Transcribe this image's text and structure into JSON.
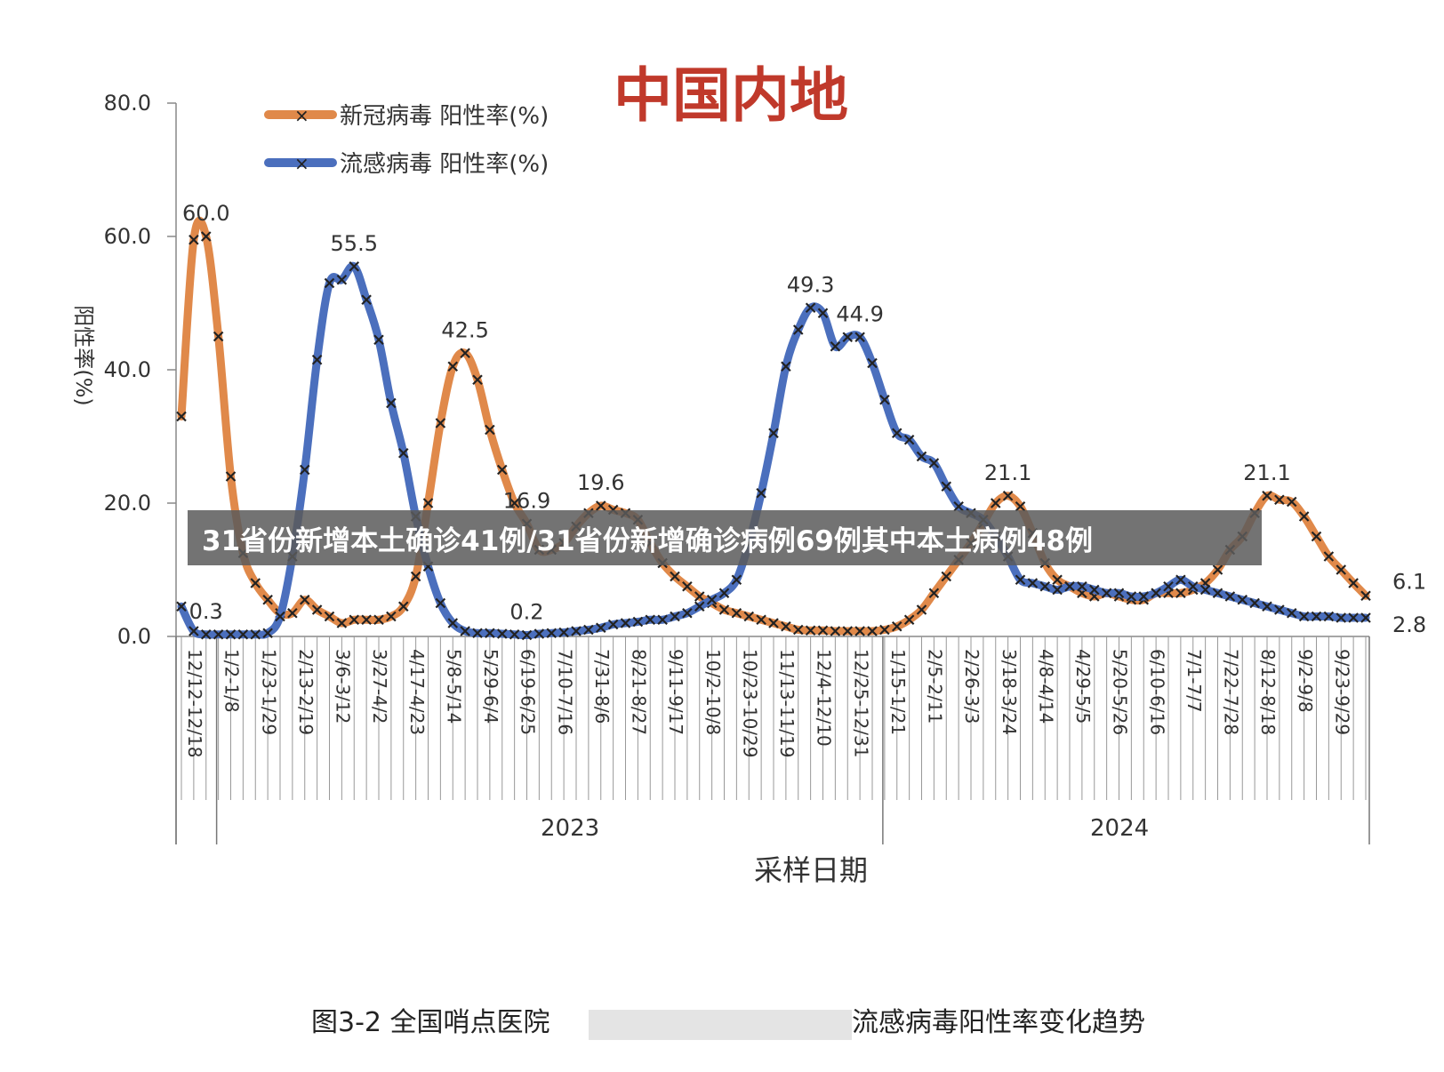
{
  "headline": "31省份新增本土确诊41例/31省份新增确诊病例69例其中本土病例48例",
  "big_title": "中国内地",
  "caption": "图3-2 全国哨点医院",
  "caption_tail": "流感病毒阳性率变化趋势",
  "colors": {
    "covid": "#e0894a",
    "flu": "#4b6fbd",
    "marker": "#222222",
    "title": "#c0392b"
  },
  "chart_data": {
    "type": "line",
    "title": "中国内地",
    "xlabel": "采样日期",
    "ylabel": "阳性率(%)",
    "ylim": [
      0,
      80
    ],
    "yticks": [
      "0.0",
      "20.0",
      "40.0",
      "60.0",
      "80.0"
    ],
    "legend_position": "top-left",
    "year_labels": [
      "2023",
      "2024"
    ],
    "x_tick_labels": [
      "12/12-12/18",
      "1/2-1/8",
      "1/23-1/29",
      "2/13-2/19",
      "3/6-3/12",
      "3/27-4/2",
      "4/17-4/23",
      "5/8-5/14",
      "5/29-6/4",
      "6/19-6/25",
      "7/10-7/16",
      "7/31-8/6",
      "8/21-8/27",
      "9/11-9/17",
      "10/2-10/8",
      "10/23-10/29",
      "11/13-11/19",
      "12/4-12/10",
      "12/25-12/31",
      "1/15-1/21",
      "2/5-2/11",
      "2/26-3/3",
      "3/18-3/24",
      "4/8-4/14",
      "4/29-5/5",
      "5/20-5/26",
      "6/10-6/16",
      "7/1-7/7",
      "7/22-7/28",
      "8/12-8/18",
      "9/2-9/8",
      "9/23-9/29"
    ],
    "series": [
      {
        "name": "新冠病毒 阳性率(%)",
        "values": [
          33.0,
          59.5,
          60.0,
          45.0,
          24.0,
          12.5,
          8.0,
          5.5,
          3.5,
          3.5,
          5.5,
          4.0,
          3.0,
          2.0,
          2.5,
          2.5,
          2.5,
          3.0,
          4.5,
          9.0,
          20.0,
          32.0,
          40.5,
          42.5,
          38.5,
          31.0,
          25.0,
          20.0,
          16.9,
          13.0,
          13.0,
          14.0,
          16.5,
          18.5,
          19.6,
          19.0,
          18.5,
          17.5,
          14.0,
          11.0,
          9.0,
          7.5,
          6.0,
          5.0,
          4.0,
          3.5,
          3.0,
          2.5,
          2.0,
          1.5,
          1.0,
          0.9,
          0.9,
          0.8,
          0.8,
          0.8,
          0.8,
          1.0,
          1.5,
          2.5,
          4.0,
          6.5,
          9.0,
          11.5,
          14.0,
          17.0,
          20.0,
          21.1,
          19.5,
          15.5,
          11.0,
          8.5,
          7.5,
          6.5,
          6.0,
          6.5,
          6.0,
          5.5,
          5.5,
          6.5,
          6.5,
          6.5,
          7.0,
          8.0,
          10.0,
          13.0,
          15.0,
          18.5,
          21.1,
          20.5,
          20.2,
          18.0,
          15.0,
          12.0,
          10.0,
          8.0,
          6.1
        ]
      },
      {
        "name": "流感病毒 阳性率(%)",
        "values": [
          4.5,
          0.8,
          0.3,
          0.3,
          0.3,
          0.3,
          0.3,
          0.5,
          3.0,
          12.0,
          25.0,
          41.5,
          53.0,
          53.5,
          55.5,
          50.5,
          44.5,
          35.0,
          27.5,
          18.0,
          10.5,
          5.0,
          2.0,
          0.8,
          0.5,
          0.5,
          0.4,
          0.3,
          0.2,
          0.4,
          0.5,
          0.6,
          0.8,
          1.0,
          1.3,
          1.8,
          2.0,
          2.2,
          2.5,
          2.5,
          3.0,
          3.5,
          4.5,
          5.5,
          6.5,
          8.5,
          14.0,
          21.5,
          30.5,
          40.5,
          46.0,
          49.3,
          48.5,
          43.5,
          44.9,
          44.9,
          41.0,
          35.5,
          30.5,
          29.5,
          27.0,
          26.0,
          22.5,
          19.5,
          18.5,
          17.5,
          15.0,
          12.0,
          8.5,
          8.0,
          7.5,
          7.0,
          7.5,
          7.5,
          7.0,
          6.5,
          6.5,
          6.0,
          6.0,
          6.5,
          7.5,
          8.5,
          7.5,
          7.0,
          6.5,
          6.0,
          5.5,
          5.0,
          4.5,
          4.0,
          3.5,
          3.0,
          3.0,
          3.0,
          2.8,
          2.8,
          2.8
        ]
      }
    ],
    "annotations": [
      {
        "series": 0,
        "index": 2,
        "text": "60.0"
      },
      {
        "series": 1,
        "index": 2,
        "text": "0.3"
      },
      {
        "series": 1,
        "index": 14,
        "text": "55.5"
      },
      {
        "series": 0,
        "index": 23,
        "text": "42.5"
      },
      {
        "series": 1,
        "index": 28,
        "text": "0.2"
      },
      {
        "series": 0,
        "index": 28,
        "text": "16.9"
      },
      {
        "series": 0,
        "index": 34,
        "text": "19.6"
      },
      {
        "series": 1,
        "index": 51,
        "text": "49.3"
      },
      {
        "series": 1,
        "index": 55,
        "text": "44.9"
      },
      {
        "series": 0,
        "index": 67,
        "text": "21.1"
      },
      {
        "series": 0,
        "index": 88,
        "text": "21.1"
      },
      {
        "series": 0,
        "index": 96,
        "text": "6.1"
      },
      {
        "series": 1,
        "index": 96,
        "text": "2.8"
      }
    ]
  }
}
